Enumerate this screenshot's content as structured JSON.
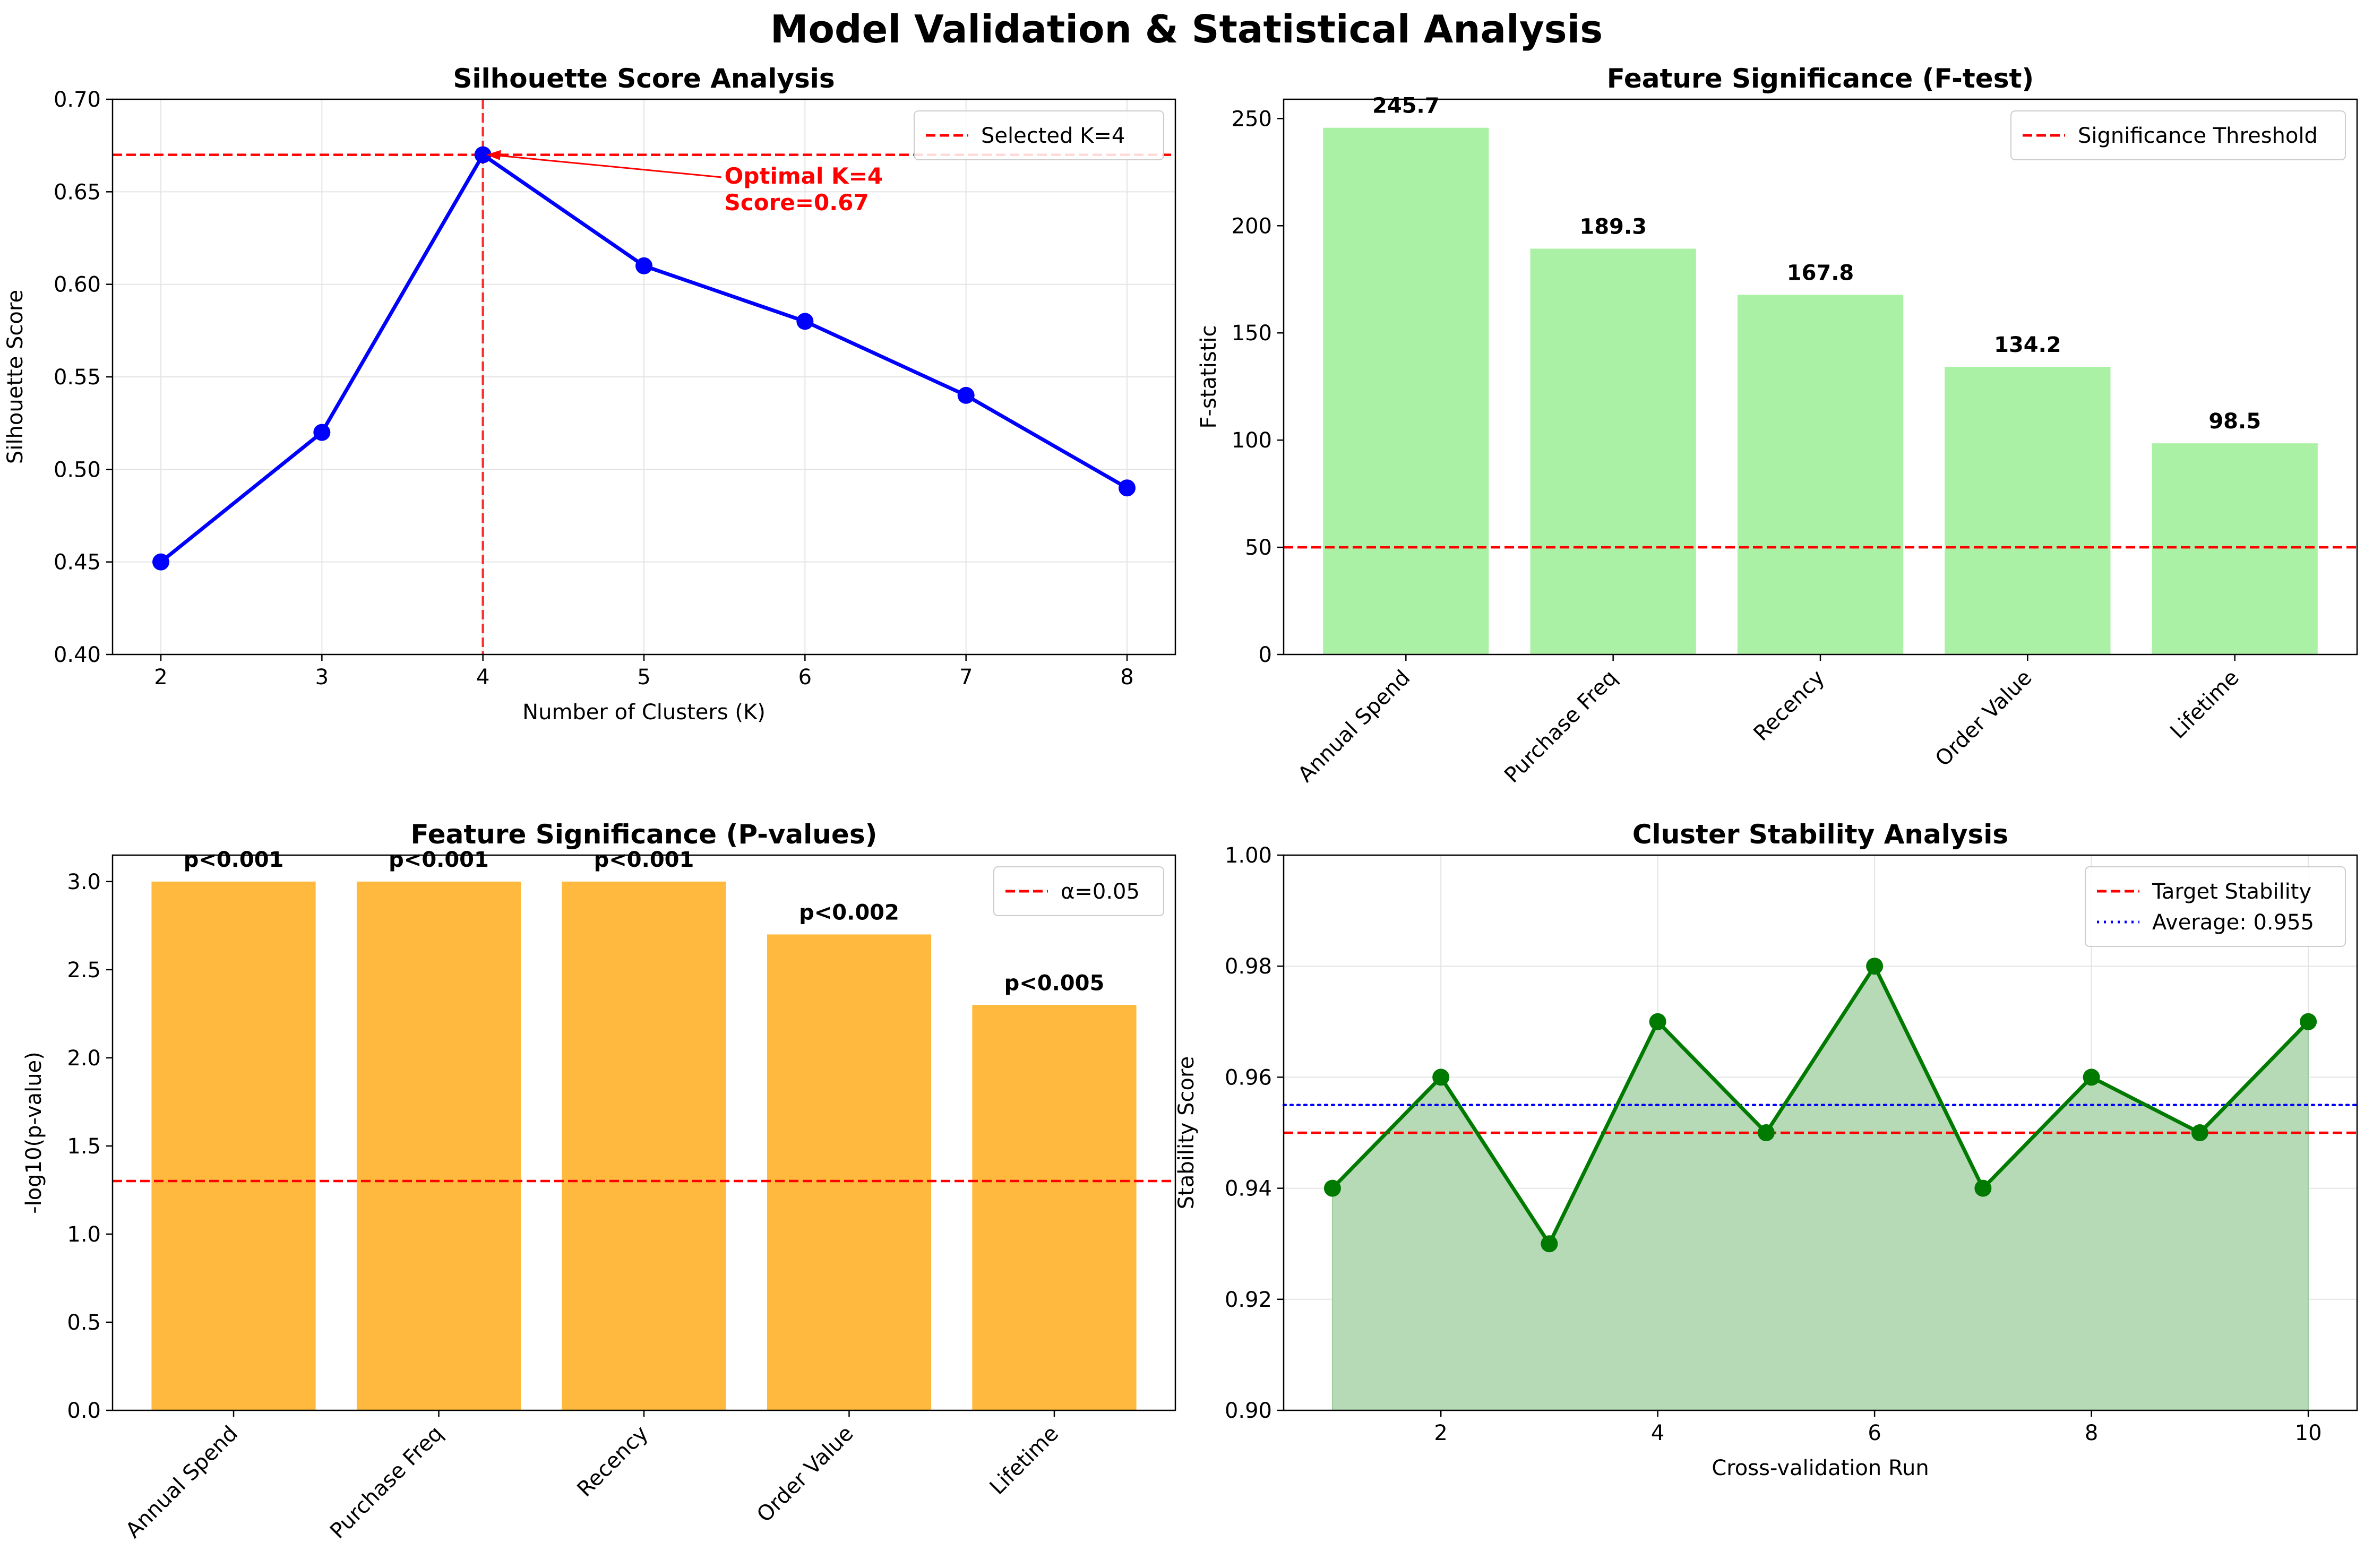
{
  "suptitle": "Model Validation & Statistical Analysis",
  "colors": {
    "silhouette_line": "#0000ff",
    "f_bar": "#a6f0a0",
    "p_bar": "#ffb534",
    "stability_line": "#007a00",
    "stability_fill": "#b3d9b3",
    "threshold": "#ff0000",
    "average": "#0000ff"
  },
  "chart_data": [
    {
      "type": "line",
      "title": "Silhouette Score Analysis",
      "xlabel": "Number of Clusters (K)",
      "ylabel": "Silhouette Score",
      "x": [
        2,
        3,
        4,
        5,
        6,
        7,
        8
      ],
      "y": [
        0.45,
        0.52,
        0.67,
        0.61,
        0.58,
        0.54,
        0.49
      ],
      "xlim": [
        1.7,
        8.3
      ],
      "ylim": [
        0.4,
        0.7
      ],
      "xticks": [
        "2",
        "3",
        "4",
        "5",
        "6",
        "7",
        "8"
      ],
      "yticks": [
        "0.40",
        "0.45",
        "0.50",
        "0.55",
        "0.60",
        "0.65",
        "0.70"
      ],
      "grid": true,
      "vline": {
        "x": 4,
        "label": "Selected K=4"
      },
      "hline": {
        "y": 0.67
      },
      "annotation": {
        "line1": "Optimal K=4",
        "line2": "Score=0.67",
        "x": 4,
        "y": 0.67
      },
      "legend": "top-right"
    },
    {
      "type": "bar",
      "title": "Feature Significance (F-test)",
      "ylabel": "F-statistic",
      "categories": [
        "Annual Spend",
        "Purchase Freq",
        "Recency",
        "Order Value",
        "Lifetime"
      ],
      "values": [
        245.7,
        189.3,
        167.8,
        134.2,
        98.5
      ],
      "data_labels": [
        "245.7",
        "189.3",
        "167.8",
        "134.2",
        "98.5"
      ],
      "ylim": [
        0,
        259
      ],
      "yticks": [
        "0",
        "50",
        "100",
        "150",
        "200",
        "250"
      ],
      "hline": {
        "y": 50,
        "label": "Significance Threshold"
      },
      "grid": false,
      "legend": "top-right"
    },
    {
      "type": "bar",
      "title": "Feature Significance (P-values)",
      "ylabel": "-log10(p-value)",
      "categories": [
        "Annual Spend",
        "Purchase Freq",
        "Recency",
        "Order Value",
        "Lifetime"
      ],
      "values": [
        3.0,
        3.0,
        3.0,
        2.7,
        2.3
      ],
      "data_labels": [
        "p<0.001",
        "p<0.001",
        "p<0.001",
        "p<0.002",
        "p<0.005"
      ],
      "ylim": [
        0,
        3.15
      ],
      "yticks": [
        "0.0",
        "0.5",
        "1.0",
        "1.5",
        "2.0",
        "2.5",
        "3.0"
      ],
      "hline": {
        "y": 1.301,
        "label": "α=0.05"
      },
      "grid": false,
      "legend": "top-right"
    },
    {
      "type": "area",
      "title": "Cluster Stability Analysis",
      "xlabel": "Cross-validation Run",
      "ylabel": "Stability Score",
      "x": [
        1,
        2,
        3,
        4,
        5,
        6,
        7,
        8,
        9,
        10
      ],
      "y": [
        0.94,
        0.96,
        0.93,
        0.97,
        0.95,
        0.98,
        0.94,
        0.96,
        0.95,
        0.97
      ],
      "xlim": [
        0.55,
        10.45
      ],
      "ylim": [
        0.9,
        1.0
      ],
      "xticks": [
        "2",
        "4",
        "6",
        "8",
        "10"
      ],
      "yticks": [
        "0.90",
        "0.92",
        "0.94",
        "0.96",
        "0.98",
        "1.00"
      ],
      "hline": {
        "y": 0.95,
        "label": "Target Stability"
      },
      "avgline": {
        "y": 0.955,
        "label": "Average: 0.955"
      },
      "grid": true,
      "legend": "top-right"
    }
  ]
}
